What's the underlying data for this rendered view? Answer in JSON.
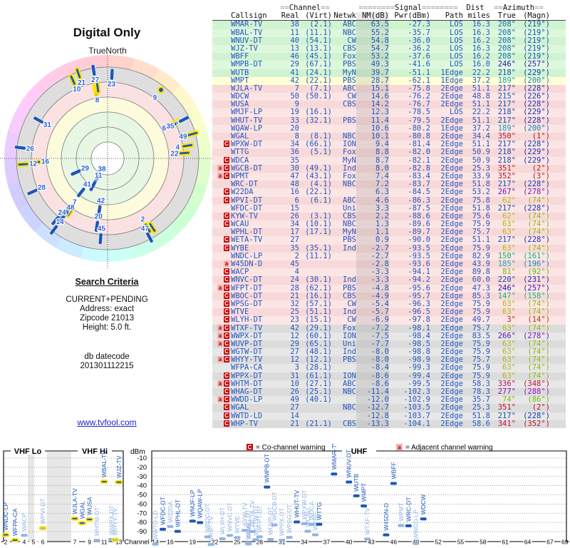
{
  "colors": {
    "text_blue": "#2457c5",
    "bar_dark": "#1c56b8",
    "bar_light": "#8fb3e6",
    "halo_yellow": "#ffe400",
    "warn_red": "#cc0000",
    "warn_pink": "#f5b0b0",
    "link_blue": "#2222cc",
    "row_green": "#d2f3d2",
    "row_yellow": "#ffffc9",
    "row_pink": "#f8d9d9",
    "row_gray": "#dddddd",
    "zone_green": "#e7f7e3",
    "zone_yellow": "#fcfcdc",
    "zone_pink": "#fbe2e2",
    "zone_gray": "#dedede"
  },
  "radar": {
    "title": "Digital Only",
    "north_label": "TrueNorth",
    "extra_points": [
      {
        "label": "9",
        "az": 38,
        "nm": -10,
        "dot": true,
        "halo": true
      },
      {
        "label": "22",
        "az": 86,
        "nm": 1,
        "dot": false,
        "halo": true
      },
      {
        "label": "31",
        "az": 299,
        "nm": -1,
        "dot": false,
        "halo": false
      },
      {
        "label": "47",
        "az": 152,
        "nm": -13,
        "dot": false,
        "halo": false
      }
    ]
  },
  "search_criteria": {
    "heading": "Search Criteria",
    "lines": [
      "CURRENT+PENDING",
      "Address: exact",
      "Zipcode 21013",
      "Height: 5.0 ft."
    ],
    "db_label": "db datecode",
    "db_value": "201301112215"
  },
  "footer_link": "www.tvfool.com",
  "table": {
    "group_headers": {
      "channel": "==Channel==",
      "signal": "========Signal========",
      "dist": "Dist",
      "azimuth": "==Azimuth=="
    },
    "columns": [
      "Callsign",
      "Real",
      "(Virt)",
      "Netwk",
      "NM(dB)",
      "Pwr(dBm)",
      "Path",
      "miles",
      "True",
      "(Magn)"
    ],
    "rows": [
      [
        "",
        "WMAR-TV",
        "38",
        "(2.1)",
        "ABC",
        "63.5",
        "-27.3",
        "LOS",
        "16.3",
        208,
        219,
        "green",
        0,
        0
      ],
      [
        "",
        "WBAL-TV",
        "11",
        "(11.1)",
        "NBC",
        "55.2",
        "-35.7",
        "LOS",
        "16.3",
        208,
        219,
        "green",
        0,
        1
      ],
      [
        "",
        "WNUV-DT",
        "40",
        "(54.1)",
        "CW",
        "54.8",
        "-36.0",
        "LOS",
        "16.2",
        208,
        219,
        "green",
        0,
        0
      ],
      [
        "",
        "WJZ-TV",
        "13",
        "(13.1)",
        "CBS",
        "54.7",
        "-36.2",
        "LOS",
        "16.3",
        208,
        219,
        "green",
        0,
        1
      ],
      [
        "",
        "WBFF",
        "46",
        "(45.1)",
        "Fox",
        "53.2",
        "-37.6",
        "LOS",
        "16.2",
        208,
        219,
        "green",
        0,
        0
      ],
      [
        "",
        "WMPB-DT",
        "29",
        "(67.1)",
        "PBS",
        "49.3",
        "-41.6",
        "LOS",
        "16.0",
        246,
        257,
        "green",
        0,
        0
      ],
      [
        "",
        "WUTB",
        "41",
        "(24.1)",
        "MyN",
        "39.7",
        "-51.1",
        "1Edge",
        "22.2",
        218,
        229,
        "green",
        0,
        0
      ],
      [
        "",
        "WMPT",
        "42",
        "(22.1)",
        "PBS",
        "28.7",
        "-62.1",
        "1Edge",
        "37.2",
        189,
        200,
        "yellow",
        0,
        0
      ],
      [
        "",
        "WJLA-TV",
        "7",
        "(7.1)",
        "ABC",
        "15.1",
        "-75.8",
        "2Edge",
        "51.1",
        217,
        228,
        "pink",
        1,
        1
      ],
      [
        "",
        "WDCW",
        "50",
        "(50.1)",
        "CW",
        "14.6",
        "-76.2",
        "2Edge",
        "48.8",
        215,
        226,
        "pink",
        1,
        0
      ],
      [
        "",
        "WUSA",
        "9",
        "",
        "CBS",
        "14.2",
        "-76.7",
        "2Edge",
        "51.1",
        217,
        228,
        "pink",
        1,
        1
      ],
      [
        "",
        "WMJF-LP",
        "19",
        "(16.1)",
        "",
        "12.3",
        "-78.5",
        "LOS",
        "22.2",
        218,
        229,
        "pink",
        1,
        0
      ],
      [
        "",
        "WHUT-TV",
        "33",
        "(32.1)",
        "PBS",
        "11.4",
        "-79.5",
        "2Edge",
        "51.1",
        217,
        228,
        "pink",
        1,
        0
      ],
      [
        "",
        "WQAW-LP",
        "20",
        "",
        "",
        "10.6",
        "-80.2",
        "1Edge",
        "37.2",
        189,
        200,
        "pink",
        0,
        0
      ],
      [
        "",
        "WGAL",
        "8",
        "(8.1)",
        "NBC",
        "10.1",
        "-80.8",
        "2Edge",
        "34.4",
        350,
        1,
        "pink",
        1,
        1
      ],
      [
        "C",
        "WPXW-DT",
        "34",
        "(66.1)",
        "ION",
        "9.4",
        "-81.4",
        "2Edge",
        "51.1",
        217,
        228,
        "pink",
        0,
        0
      ],
      [
        "",
        "WTTG",
        "36",
        "(5.1)",
        "Fox",
        "8.8",
        "-82.0",
        "2Edge",
        "50.9",
        218,
        229,
        "pink",
        0,
        0
      ],
      [
        "C",
        "WDCA",
        "35",
        "",
        "MyN",
        "8.7",
        "-82.1",
        "2Edge",
        "50.9",
        218,
        229,
        "pink",
        0,
        0
      ],
      [
        "aC",
        "WGCB-DT",
        "30",
        "(49.1)",
        "Ind",
        "8.0",
        "-82.8",
        "2Edge",
        "25.3",
        351,
        2,
        "pink",
        1,
        0
      ],
      [
        "aC",
        "WPMT",
        "47",
        "(43.1)",
        "Fox",
        "7.4",
        "-83.4",
        "2Edge",
        "33.9",
        352,
        3,
        "pink",
        1,
        0
      ],
      [
        "",
        "WRC-DT",
        "48",
        "(4.1)",
        "NBC",
        "7.2",
        "-83.7",
        "2Edge",
        "51.8",
        217,
        228,
        "pink",
        0,
        0
      ],
      [
        "C",
        "W22DA",
        "16",
        "(22.1)",
        "",
        "6.3",
        "-84.5",
        "2Edge",
        "53.2",
        267,
        278,
        "pink",
        1,
        0
      ],
      [
        "C",
        "WPVI-DT",
        "6",
        "(6.1)",
        "ABC",
        "4.6",
        "-86.3",
        "2Edge",
        "75.8",
        62,
        74,
        "pink",
        1,
        1
      ],
      [
        "",
        "WFDC-DT",
        "15",
        "",
        "Uni",
        "3.3",
        "-87.5",
        "2Edge",
        "51.8",
        217,
        228,
        "pink",
        0,
        0
      ],
      [
        "C",
        "KYW-TV",
        "26",
        "(3.1)",
        "CBS",
        "2.2",
        "-88.6",
        "2Edge",
        "75.6",
        62,
        74,
        "pink",
        1,
        0
      ],
      [
        "C",
        "WCAU",
        "34",
        "(10.1)",
        "NBC",
        "1.3",
        "-89.6",
        "2Edge",
        "75.9",
        63,
        74,
        "pink",
        1,
        0
      ],
      [
        "",
        "WPHL-DT",
        "17",
        "(17.1)",
        "MyN",
        "1.1",
        "-89.7",
        "2Edge",
        "75.7",
        63,
        74,
        "pink",
        0,
        0
      ],
      [
        "C",
        "WETA-TV",
        "27",
        "",
        "PBS",
        "0.9",
        "-90.0",
        "2Edge",
        "51.1",
        217,
        228,
        "pink",
        0,
        0
      ],
      [
        "C",
        "WYBE",
        "35",
        "(35.1)",
        "Ind",
        "-2.7",
        "-93.5",
        "2Edge",
        "75.9",
        63,
        74,
        "pink",
        0,
        0
      ],
      [
        "",
        "WNDC-LP",
        "2",
        "(11.1)",
        "",
        "-2.7",
        "-93.5",
        "2Edge",
        "82.9",
        150,
        161,
        "pink",
        1,
        1
      ],
      [
        "a",
        "W45DN-D",
        "45",
        "",
        "",
        "-2.8",
        "-93.6",
        "2Edge",
        "43.9",
        185,
        196,
        "pink",
        0,
        0
      ],
      [
        "C",
        "WACP",
        "4",
        "",
        "",
        "-3.3",
        "-94.1",
        "2Edge",
        "89.8",
        81,
        92,
        "pink",
        1,
        0
      ],
      [
        "C",
        "WNVC-DT",
        "24",
        "(30.1)",
        "Ind",
        "-3.3",
        "-94.2",
        "2Edge",
        "60.0",
        220,
        231,
        "pink",
        0,
        0
      ],
      [
        "aC",
        "WFPT-DT",
        "28",
        "(62.1)",
        "PBS",
        "-4.8",
        "-95.6",
        "2Edge",
        "47.3",
        246,
        257,
        "pink",
        0,
        0
      ],
      [
        "C",
        "WBOC-DT",
        "21",
        "(16.1)",
        "CBS",
        "-4.9",
        "-95.7",
        "2Edge",
        "85.3",
        147,
        158,
        "pink",
        1,
        0
      ],
      [
        "C",
        "WPSG-DT",
        "32",
        "(57.1)",
        "CW",
        "-5.4",
        "-96.3",
        "2Edge",
        "75.9",
        63,
        74,
        "pink",
        0,
        0
      ],
      [
        "C",
        "WTVE",
        "25",
        "(51.1)",
        "Ind",
        "-5.7",
        "-96.5",
        "2Edge",
        "75.9",
        63,
        74,
        "pink",
        0,
        0
      ],
      [
        "C",
        "WLYH-DT",
        "23",
        "(15.1)",
        "CW",
        "-6.9",
        "-97.8",
        "2Edge",
        "49.7",
        3,
        14,
        "pink",
        0,
        0
      ],
      [
        "aC",
        "WTXF-TV",
        "42",
        "(29.1)",
        "Fox",
        "-7.2",
        "-98.1",
        "2Edge",
        "75.7",
        63,
        74,
        "gray",
        0,
        0
      ],
      [
        "aC",
        "WWPX-DT",
        "12",
        "(60.1)",
        "ION",
        "-7.5",
        "-98.4",
        "2Edge",
        "83.5",
        266,
        278,
        "gray",
        1,
        0
      ],
      [
        "aC",
        "WUVP-DT",
        "29",
        "(65.1)",
        "Uni",
        "-7.7",
        "-98.5",
        "2Edge",
        "75.9",
        63,
        74,
        "gray",
        0,
        0
      ],
      [
        "C",
        "WGTW-DT",
        "27",
        "(48.1)",
        "Ind",
        "-8.0",
        "-98.8",
        "2Edge",
        "75.9",
        63,
        74,
        "gray",
        0,
        0
      ],
      [
        "aC",
        "WHYY-TV",
        "12",
        "(12.1)",
        "PBS",
        "-8.0",
        "-98.9",
        "2Edge",
        "75.7",
        63,
        74,
        "gray",
        0,
        1
      ],
      [
        "",
        "WFPA-CA",
        "3",
        "(28.1)",
        "",
        "-8.4",
        "-99.3",
        "2Edge",
        "75.9",
        63,
        74,
        "gray",
        0,
        1
      ],
      [
        "C",
        "WPPX-DT",
        "31",
        "(61.1)",
        "ION",
        "-8.6",
        "-99.4",
        "2Edge",
        "75.9",
        63,
        74,
        "gray",
        0,
        0
      ],
      [
        "aC",
        "WHTM-DT",
        "10",
        "(27.1)",
        "ABC",
        "-8.6",
        "-99.5",
        "2Edge",
        "58.3",
        336,
        348,
        "gray",
        1,
        0
      ],
      [
        "C",
        "WHAG-DT",
        "26",
        "(25.1)",
        "NBC",
        "-11.4",
        "-102.3",
        "2Edge",
        "78.3",
        277,
        288,
        "gray",
        0,
        0
      ],
      [
        "aC",
        "WWDD-LP",
        "49",
        "(40.1)",
        "",
        "-12.0",
        "-102.9",
        "2Edge",
        "35.7",
        74,
        86,
        "gray",
        1,
        0
      ],
      [
        "C",
        "WGAL",
        "27",
        "",
        "NBC",
        "-12.7",
        "-103.5",
        "2Edge",
        "25.3",
        351,
        2,
        "gray",
        0,
        0
      ],
      [
        "C",
        "WWTD-LD",
        "14",
        "",
        "",
        "-12.8",
        "-103.7",
        "2Edge",
        "51.8",
        217,
        228,
        "gray",
        0,
        0
      ],
      [
        "C",
        "WHP-TV",
        "21",
        "(21.1)",
        "CBS",
        "-13.3",
        "-104.1",
        "2Edge",
        "58.6",
        341,
        352,
        "gray",
        1,
        0
      ]
    ]
  },
  "spectrum": {
    "legend_co": {
      "symbol": "C",
      "text": "= Co-channel warning"
    },
    "legend_adj": {
      "symbol": "a",
      "text": "= Adjacent channel warning"
    },
    "bands": {
      "vhf_lo": "VHF Lo",
      "vhf_hi": "VHF Hi",
      "uhf": "UHF"
    },
    "dbm_label": "dBm",
    "channel_label": "Channel",
    "dbm_ticks": [
      -10,
      -20,
      -30,
      -40,
      -50,
      -60,
      -70,
      -80,
      -90
    ],
    "vhf_channel_ticks": [
      2,
      4,
      5,
      6,
      7,
      9,
      11,
      13
    ],
    "uhf_channel_ticks": [
      14,
      16,
      19,
      22,
      25,
      28,
      31,
      34,
      37,
      40,
      43,
      46,
      49,
      52,
      55,
      58,
      61,
      64,
      67,
      69
    ]
  }
}
